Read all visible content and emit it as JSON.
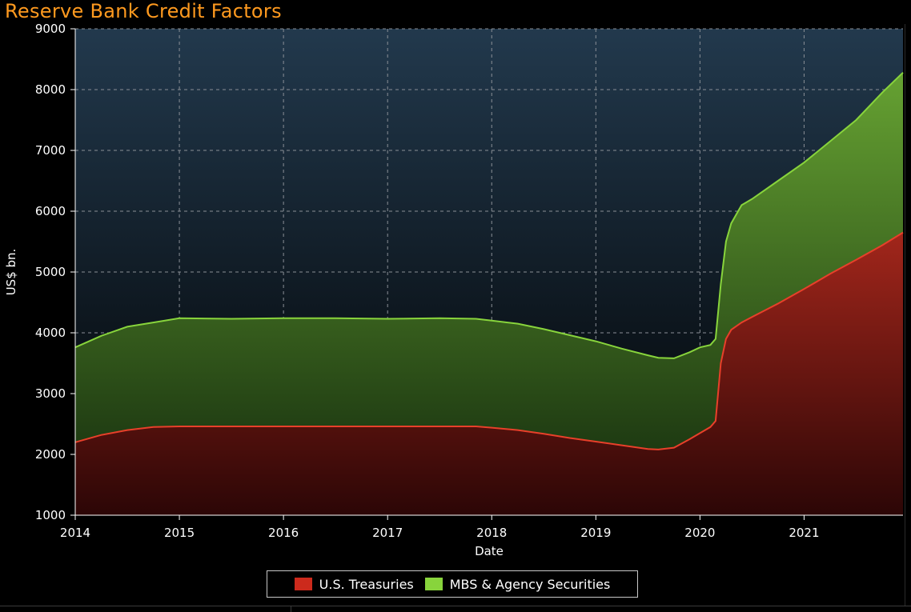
{
  "chart_data": {
    "type": "area",
    "stacked": true,
    "title": "Reserve Bank Credit Factors",
    "xlabel": "Date",
    "ylabel": "US$ bn.",
    "xlim": [
      2014.0,
      2021.95
    ],
    "ylim": [
      1000,
      9000
    ],
    "x_ticks": [
      "2014",
      "2015",
      "2016",
      "2017",
      "2018",
      "2019",
      "2020",
      "2021"
    ],
    "y_ticks": [
      "1000",
      "2000",
      "3000",
      "4000",
      "5000",
      "6000",
      "7000",
      "8000",
      "9000"
    ],
    "grid": true,
    "legend_position": "bottom-center",
    "series": [
      {
        "name": "U.S. Treasuries",
        "color": "#cc2a1c",
        "x": [
          2014.0,
          2014.25,
          2014.5,
          2014.75,
          2015.0,
          2015.5,
          2016.0,
          2016.5,
          2017.0,
          2017.5,
          2017.85,
          2018.0,
          2018.25,
          2018.5,
          2018.75,
          2019.0,
          2019.25,
          2019.5,
          2019.6,
          2019.75,
          2019.9,
          2020.0,
          2020.1,
          2020.15,
          2020.2,
          2020.25,
          2020.3,
          2020.4,
          2020.5,
          2020.75,
          2021.0,
          2021.25,
          2021.5,
          2021.75,
          2021.95
        ],
        "values": [
          2200,
          2320,
          2400,
          2450,
          2460,
          2460,
          2460,
          2460,
          2460,
          2460,
          2460,
          2440,
          2400,
          2340,
          2270,
          2210,
          2150,
          2090,
          2080,
          2110,
          2250,
          2350,
          2450,
          2550,
          3500,
          3900,
          4050,
          4170,
          4260,
          4480,
          4720,
          4970,
          5200,
          5440,
          5650
        ]
      },
      {
        "name": "MBS & Agency Securities",
        "color": "#88d43c",
        "x": [
          2014.0,
          2014.25,
          2014.5,
          2014.75,
          2015.0,
          2015.5,
          2016.0,
          2016.5,
          2017.0,
          2017.5,
          2017.85,
          2018.0,
          2018.25,
          2018.5,
          2018.75,
          2019.0,
          2019.25,
          2019.5,
          2019.6,
          2019.75,
          2019.9,
          2020.0,
          2020.1,
          2020.15,
          2020.2,
          2020.25,
          2020.3,
          2020.4,
          2020.5,
          2020.75,
          2021.0,
          2021.25,
          2021.5,
          2021.75,
          2021.95
        ],
        "totals": [
          3760,
          3950,
          4100,
          4170,
          4240,
          4230,
          4240,
          4240,
          4230,
          4240,
          4230,
          4200,
          4150,
          4060,
          3960,
          3860,
          3740,
          3630,
          3590,
          3580,
          3680,
          3760,
          3800,
          3900,
          4800,
          5500,
          5800,
          6100,
          6200,
          6500,
          6800,
          7150,
          7500,
          7950,
          8280
        ]
      }
    ]
  }
}
